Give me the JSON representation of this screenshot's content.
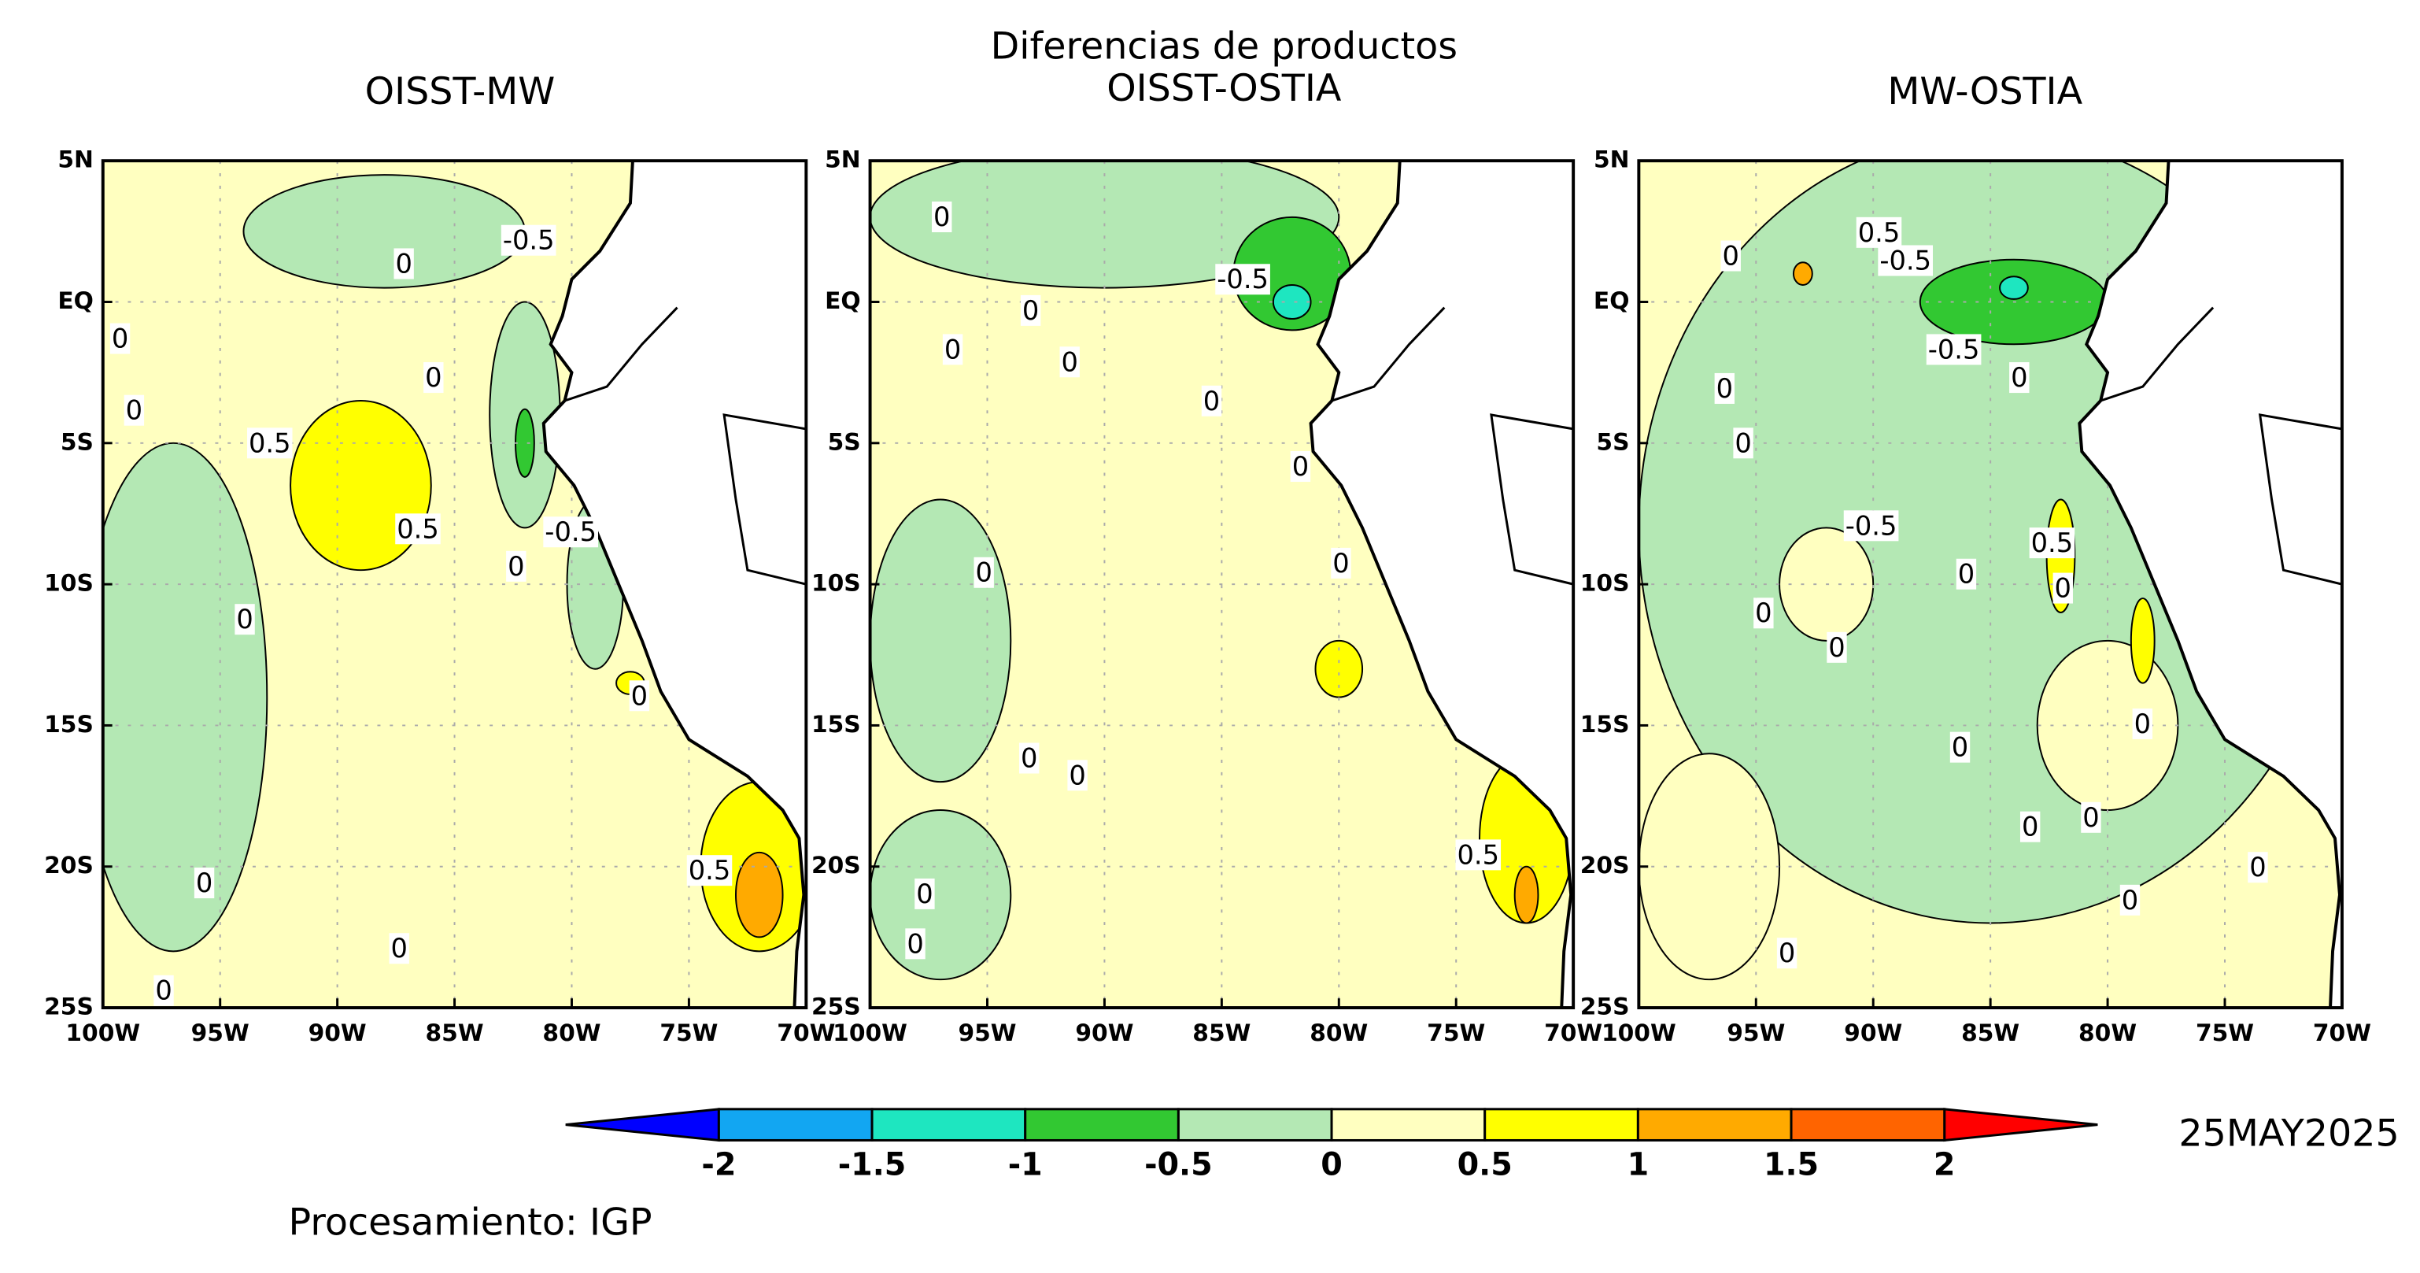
{
  "title": "Diferencias de productos",
  "date": "25MAY2025",
  "credit": "Procesamiento: IGP",
  "map": {
    "type": "contour-map",
    "xlim": [
      -100,
      -70
    ],
    "ylim": [
      -25,
      5
    ],
    "xticks": [
      {
        "value": -100,
        "label": "100W"
      },
      {
        "value": -95,
        "label": "95W"
      },
      {
        "value": -90,
        "label": "90W"
      },
      {
        "value": -85,
        "label": "85W"
      },
      {
        "value": -80,
        "label": "80W"
      },
      {
        "value": -75,
        "label": "75W"
      },
      {
        "value": -70,
        "label": "70W"
      }
    ],
    "yticks": [
      {
        "value": 5,
        "label": "5N"
      },
      {
        "value": 0,
        "label": "EQ"
      },
      {
        "value": -5,
        "label": "5S"
      },
      {
        "value": -10,
        "label": "10S"
      },
      {
        "value": -15,
        "label": "15S"
      },
      {
        "value": -20,
        "label": "20S"
      },
      {
        "value": -25,
        "label": "25S"
      }
    ],
    "grid": true,
    "levels": [
      -2,
      -1.5,
      -1,
      -0.5,
      0,
      0.5,
      1,
      1.5,
      2
    ],
    "colors": [
      "#0000ff",
      "#12a6f2",
      "#1ee6c0",
      "#32c832",
      "#b4e8b4",
      "#ffffc0",
      "#ffff00",
      "#ffaa00",
      "#ff6400",
      "#ff0000"
    ],
    "panels": [
      {
        "title": "OISST-MW",
        "contour_labels": [
          -0.5,
          0,
          0,
          0,
          0,
          0.5,
          0.5,
          -0.5,
          0,
          0,
          0,
          0.5,
          0,
          0,
          0
        ]
      },
      {
        "title": "OISST-OSTIA",
        "contour_labels": [
          0,
          -0.5,
          0,
          0,
          0,
          0,
          0,
          0,
          0,
          0,
          0,
          0.5,
          0,
          0
        ]
      },
      {
        "title": "MW-OSTIA",
        "contour_labels": [
          0,
          0.5,
          -0.5,
          -0.5,
          0,
          0,
          0,
          -0.5,
          0.5,
          0,
          0,
          0,
          0,
          0,
          0,
          0,
          0,
          0,
          0,
          0
        ]
      }
    ]
  }
}
